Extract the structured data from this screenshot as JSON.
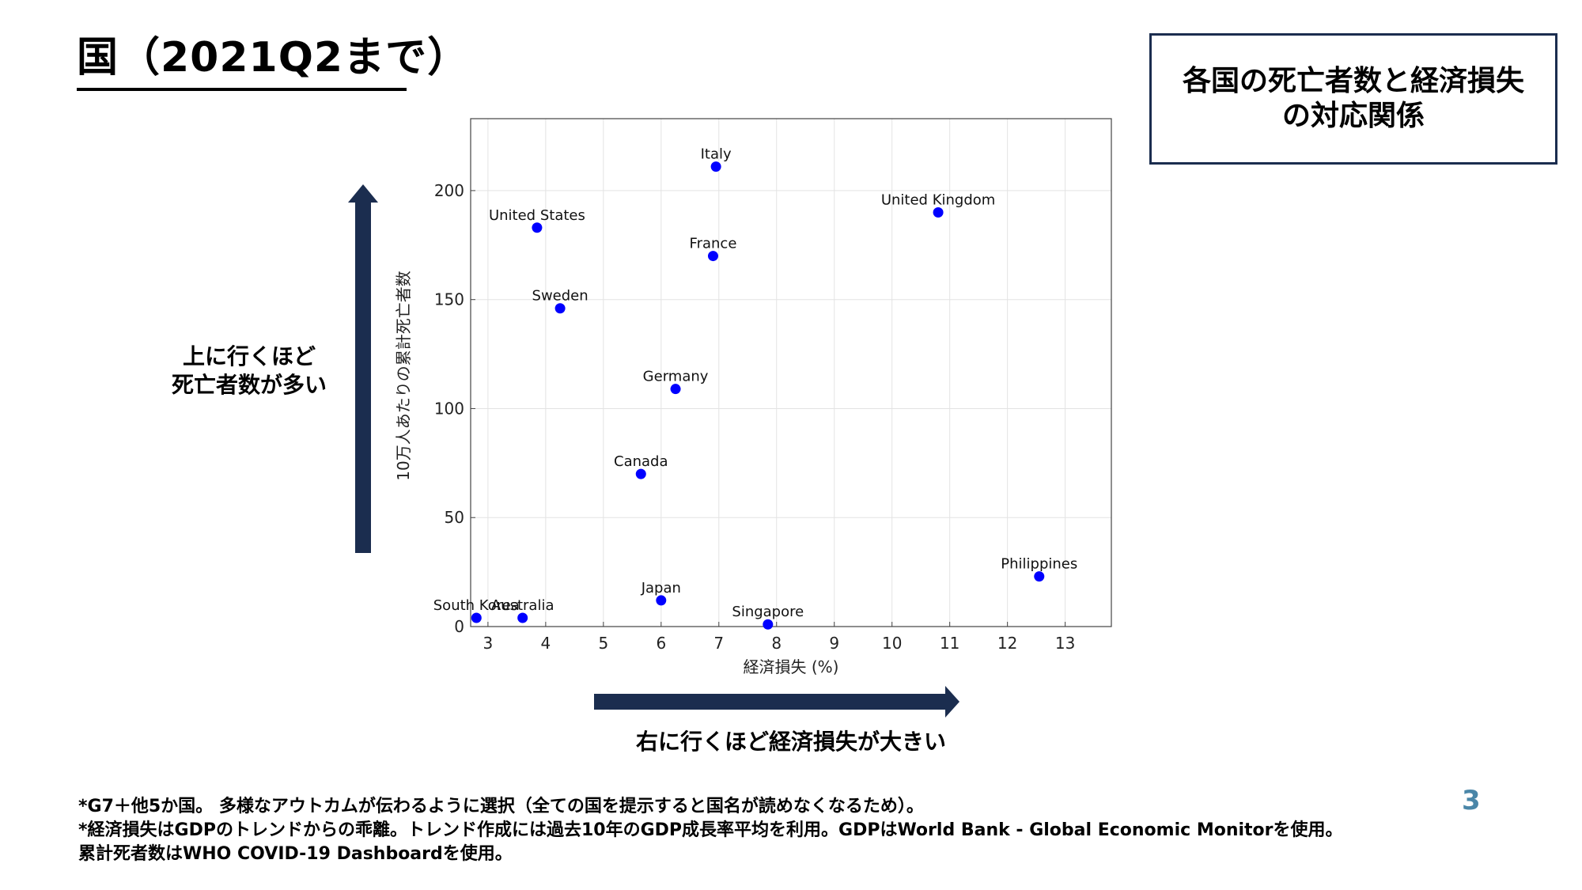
{
  "header": {
    "title": "国（2021Q2まで）"
  },
  "topic_box": {
    "line1": "各国の死亡者数と経済損失",
    "line2": "の対応関係"
  },
  "y_caption": {
    "line1": "上に行くほど",
    "line2": "死亡者数が多い"
  },
  "x_caption": "右に行くほど経済損失が大きい",
  "footnotes": [
    "*G7＋他5か国。 多様なアウトカムが伝わるように選択（全ての国を提示すると国名が読めなくなるため）。",
    "*経済損失はGDPのトレンドからの乖離。トレンド作成には過去10年のGDP成長率平均を利用。GDPはWorld Bank - Global Economic Monitorを使用。",
    "累計死者数はWHO COVID-19 Dashboardを使用。"
  ],
  "page_number": "3",
  "colors": {
    "arrow": "#1b2d4f",
    "point": "#0000ff",
    "page_number": "#4a86a8"
  },
  "chart_data": {
    "type": "scatter",
    "xlabel": "経済損失 (%)",
    "ylabel": "10万人あたりの累計死亡者数",
    "xlim": [
      2.7,
      13.8
    ],
    "ylim": [
      0,
      233
    ],
    "xticks": [
      3,
      4,
      5,
      6,
      7,
      8,
      9,
      10,
      11,
      12,
      13
    ],
    "yticks": [
      0,
      50,
      100,
      150,
      200
    ],
    "grid": true,
    "points": [
      {
        "label": "Italy",
        "x": 6.95,
        "y": 211
      },
      {
        "label": "United Kingdom",
        "x": 10.8,
        "y": 190
      },
      {
        "label": "United States",
        "x": 3.85,
        "y": 183
      },
      {
        "label": "France",
        "x": 6.9,
        "y": 170
      },
      {
        "label": "Sweden",
        "x": 4.25,
        "y": 146
      },
      {
        "label": "Germany",
        "x": 6.25,
        "y": 109
      },
      {
        "label": "Canada",
        "x": 5.65,
        "y": 70
      },
      {
        "label": "Philippines",
        "x": 12.55,
        "y": 23
      },
      {
        "label": "Japan",
        "x": 6.0,
        "y": 12
      },
      {
        "label": "South Korea",
        "x": 2.8,
        "y": 4
      },
      {
        "label": "Australia",
        "x": 3.6,
        "y": 4
      },
      {
        "label": "Singapore",
        "x": 7.85,
        "y": 1
      }
    ]
  }
}
